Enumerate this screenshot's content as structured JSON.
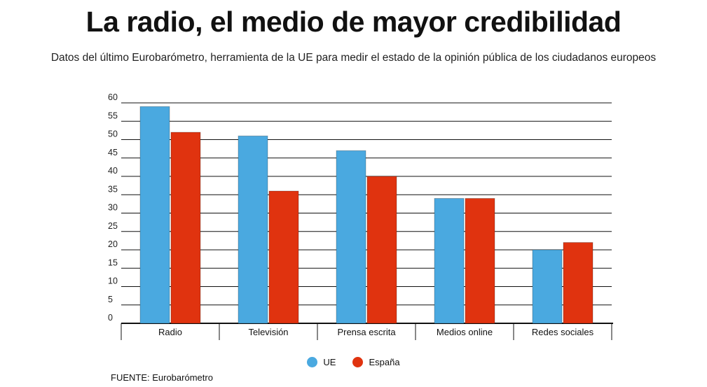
{
  "header": {
    "title": "La radio, el medio de mayor credibilidad",
    "subtitle": "Datos del último Eurobarómetro, herramienta de la UE para medir el estado de la opinión pública de los ciudadanos europeos"
  },
  "footer": {
    "source": "FUENTE: Eurobarómetro"
  },
  "colors": {
    "ue": "#4aa9e0",
    "espana": "#e0330f",
    "grid": "#111111"
  },
  "chart_data": {
    "type": "bar",
    "title": "La radio, el medio de mayor credibilidad",
    "xlabel": "",
    "ylabel": "",
    "ylim": [
      0,
      60
    ],
    "yticks": [
      0,
      5,
      10,
      15,
      20,
      25,
      30,
      35,
      40,
      45,
      50,
      55,
      60
    ],
    "grid": true,
    "legend_position": "bottom-center",
    "categories": [
      "Radio",
      "Televisión",
      "Prensa escrita",
      "Medios online",
      "Redes sociales"
    ],
    "series": [
      {
        "name": "UE",
        "color": "#4aa9e0",
        "values": [
          59,
          51,
          47,
          34,
          20
        ]
      },
      {
        "name": "España",
        "color": "#e0330f",
        "values": [
          52,
          36,
          40,
          34,
          22
        ]
      }
    ]
  }
}
